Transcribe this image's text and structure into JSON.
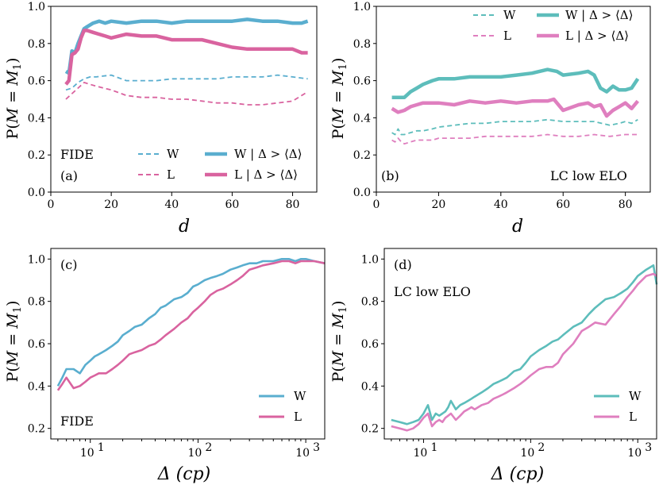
{
  "colors": {
    "W": "#5aaecf",
    "L": "#d9639f",
    "W_lc": "#5dbdbb",
    "L_lc": "#df7fbf"
  },
  "chart_data": [
    {
      "panel": "a",
      "type": "line",
      "xlabel": "d",
      "ylabel": "P(M = M1)",
      "xlim": [
        0,
        88
      ],
      "ylim": [
        0,
        1
      ],
      "xticks": [
        "0",
        "20",
        "40",
        "60",
        "80"
      ],
      "yticks": [
        "0.0",
        "0.2",
        "0.4",
        "0.6",
        "0.8",
        "1.0"
      ],
      "annotations": [
        "FIDE",
        "(a)"
      ],
      "legend": {
        "W": "W",
        "L": "L",
        "W_thick": "W | Δ > ⟨Δ⟩",
        "L_thick": "L | Δ > ⟨Δ⟩"
      },
      "series": [
        {
          "name": "W | Δ > ⟨Δ⟩",
          "style": "thick",
          "color": "W",
          "x": [
            5,
            6,
            7,
            8,
            9,
            10,
            11,
            12,
            14,
            16,
            18,
            20,
            25,
            30,
            35,
            40,
            45,
            50,
            55,
            60,
            65,
            70,
            75,
            80,
            83,
            85
          ],
          "y": [
            0.65,
            0.64,
            0.76,
            0.75,
            0.8,
            0.84,
            0.88,
            0.89,
            0.91,
            0.92,
            0.91,
            0.92,
            0.91,
            0.92,
            0.92,
            0.91,
            0.92,
            0.92,
            0.92,
            0.92,
            0.93,
            0.92,
            0.92,
            0.91,
            0.91,
            0.92
          ]
        },
        {
          "name": "L | Δ > ⟨Δ⟩",
          "style": "thick",
          "color": "L",
          "x": [
            5,
            6,
            7,
            8,
            9,
            10,
            11,
            12,
            14,
            16,
            18,
            20,
            25,
            30,
            35,
            40,
            45,
            50,
            55,
            60,
            65,
            70,
            75,
            80,
            83,
            85
          ],
          "y": [
            0.58,
            0.6,
            0.74,
            0.75,
            0.77,
            0.83,
            0.87,
            0.87,
            0.86,
            0.85,
            0.84,
            0.83,
            0.85,
            0.84,
            0.84,
            0.82,
            0.82,
            0.82,
            0.8,
            0.78,
            0.77,
            0.77,
            0.77,
            0.77,
            0.75,
            0.75
          ]
        },
        {
          "name": "W",
          "style": "dashed",
          "color": "W",
          "x": [
            5,
            7,
            9,
            11,
            13,
            15,
            20,
            25,
            30,
            35,
            40,
            45,
            50,
            55,
            60,
            65,
            70,
            75,
            80,
            85
          ],
          "y": [
            0.55,
            0.56,
            0.59,
            0.61,
            0.62,
            0.62,
            0.63,
            0.6,
            0.6,
            0.6,
            0.61,
            0.61,
            0.61,
            0.61,
            0.62,
            0.62,
            0.62,
            0.63,
            0.62,
            0.61
          ]
        },
        {
          "name": "L",
          "style": "dashed",
          "color": "L",
          "x": [
            5,
            7,
            9,
            11,
            13,
            15,
            20,
            25,
            30,
            35,
            40,
            45,
            50,
            55,
            60,
            65,
            70,
            75,
            80,
            85
          ],
          "y": [
            0.5,
            0.53,
            0.56,
            0.59,
            0.58,
            0.57,
            0.55,
            0.52,
            0.51,
            0.51,
            0.5,
            0.5,
            0.49,
            0.48,
            0.48,
            0.47,
            0.47,
            0.48,
            0.49,
            0.54
          ]
        }
      ]
    },
    {
      "panel": "b",
      "type": "line",
      "xlabel": "d",
      "ylabel": "P(M = M1)",
      "xlim": [
        0,
        88
      ],
      "ylim": [
        0,
        1
      ],
      "xticks": [
        "0",
        "20",
        "40",
        "60",
        "80"
      ],
      "yticks": [
        "0.0",
        "0.2",
        "0.4",
        "0.6",
        "0.8",
        "1.0"
      ],
      "annotations": [
        "(b)",
        "LC low ELO"
      ],
      "legend": {
        "W": "W",
        "L": "L",
        "W_thick": "W | Δ > ⟨Δ⟩",
        "L_thick": "L | Δ > ⟨Δ⟩"
      },
      "series": [
        {
          "name": "W | Δ > ⟨Δ⟩",
          "style": "thick",
          "color": "W_lc",
          "x": [
            5,
            7,
            9,
            11,
            13,
            15,
            18,
            20,
            25,
            30,
            35,
            40,
            45,
            50,
            55,
            58,
            60,
            65,
            68,
            70,
            72,
            74,
            76,
            78,
            80,
            82,
            84
          ],
          "y": [
            0.51,
            0.51,
            0.51,
            0.54,
            0.56,
            0.58,
            0.6,
            0.61,
            0.61,
            0.62,
            0.62,
            0.62,
            0.63,
            0.64,
            0.66,
            0.65,
            0.63,
            0.64,
            0.65,
            0.63,
            0.56,
            0.54,
            0.57,
            0.55,
            0.55,
            0.56,
            0.61
          ]
        },
        {
          "name": "L | Δ > ⟨Δ⟩",
          "style": "thick",
          "color": "L_lc",
          "x": [
            5,
            7,
            9,
            11,
            13,
            15,
            18,
            20,
            25,
            30,
            35,
            40,
            45,
            50,
            55,
            57,
            60,
            65,
            68,
            70,
            72,
            74,
            76,
            78,
            80,
            82,
            84
          ],
          "y": [
            0.45,
            0.43,
            0.44,
            0.46,
            0.47,
            0.48,
            0.48,
            0.48,
            0.47,
            0.49,
            0.48,
            0.49,
            0.48,
            0.49,
            0.49,
            0.5,
            0.44,
            0.47,
            0.48,
            0.46,
            0.47,
            0.41,
            0.44,
            0.46,
            0.48,
            0.45,
            0.49
          ]
        },
        {
          "name": "W",
          "style": "dashed",
          "color": "W_lc",
          "x": [
            5,
            6,
            7,
            8,
            9,
            11,
            13,
            15,
            18,
            20,
            25,
            30,
            35,
            40,
            45,
            50,
            55,
            60,
            65,
            70,
            75,
            78,
            80,
            82,
            84
          ],
          "y": [
            0.32,
            0.31,
            0.34,
            0.31,
            0.31,
            0.32,
            0.33,
            0.33,
            0.34,
            0.35,
            0.36,
            0.37,
            0.37,
            0.38,
            0.38,
            0.38,
            0.39,
            0.38,
            0.38,
            0.38,
            0.36,
            0.37,
            0.38,
            0.37,
            0.39
          ]
        },
        {
          "name": "L",
          "style": "dashed",
          "color": "L_lc",
          "x": [
            5,
            6,
            7,
            8,
            9,
            11,
            13,
            15,
            18,
            20,
            25,
            30,
            35,
            40,
            45,
            50,
            55,
            60,
            65,
            70,
            75,
            80,
            84
          ],
          "y": [
            0.28,
            0.27,
            0.29,
            0.27,
            0.26,
            0.27,
            0.28,
            0.28,
            0.28,
            0.29,
            0.29,
            0.29,
            0.3,
            0.3,
            0.3,
            0.3,
            0.31,
            0.3,
            0.3,
            0.31,
            0.3,
            0.31,
            0.31
          ]
        }
      ]
    },
    {
      "panel": "c",
      "type": "line",
      "scale_x": "log",
      "xlabel": "Δ (cp)",
      "ylabel": "P(M = M1)",
      "xlim": [
        4.3,
        1500
      ],
      "ylim": [
        0.15,
        1.05
      ],
      "xticks": [
        "10",
        "10",
        "10"
      ],
      "yticks": [
        "0.2",
        "0.4",
        "0.6",
        "0.8",
        "1.0"
      ],
      "annotations": [
        "(c)",
        "FIDE"
      ],
      "legend": {
        "W": "W",
        "L": "L"
      },
      "series": [
        {
          "name": "W",
          "color": "W",
          "x": [
            5,
            5.5,
            6,
            7,
            8,
            9,
            10,
            11,
            12,
            14,
            16,
            18,
            20,
            23,
            26,
            30,
            35,
            40,
            45,
            50,
            60,
            70,
            80,
            90,
            100,
            115,
            130,
            150,
            170,
            200,
            230,
            260,
            300,
            350,
            400,
            500,
            600,
            700,
            800,
            900,
            1000,
            1200,
            1500
          ],
          "y": [
            0.4,
            0.44,
            0.48,
            0.48,
            0.46,
            0.5,
            0.52,
            0.54,
            0.55,
            0.57,
            0.59,
            0.61,
            0.64,
            0.66,
            0.68,
            0.69,
            0.72,
            0.74,
            0.77,
            0.78,
            0.81,
            0.82,
            0.84,
            0.87,
            0.88,
            0.9,
            0.91,
            0.92,
            0.93,
            0.95,
            0.96,
            0.97,
            0.98,
            0.98,
            0.99,
            0.99,
            1.0,
            1.0,
            0.99,
            1.0,
            1.0,
            0.99,
            0.98
          ]
        },
        {
          "name": "L",
          "color": "L",
          "x": [
            5,
            5.5,
            6,
            7,
            8,
            9,
            10,
            11,
            12,
            14,
            16,
            18,
            20,
            23,
            26,
            30,
            35,
            40,
            45,
            50,
            60,
            70,
            80,
            90,
            100,
            115,
            130,
            150,
            170,
            200,
            230,
            260,
            300,
            350,
            400,
            500,
            600,
            700,
            800,
            900,
            1000,
            1200,
            1500
          ],
          "y": [
            0.38,
            0.41,
            0.44,
            0.39,
            0.4,
            0.42,
            0.44,
            0.45,
            0.46,
            0.46,
            0.48,
            0.5,
            0.52,
            0.55,
            0.56,
            0.57,
            0.59,
            0.6,
            0.62,
            0.64,
            0.67,
            0.7,
            0.72,
            0.75,
            0.77,
            0.8,
            0.83,
            0.85,
            0.86,
            0.88,
            0.9,
            0.92,
            0.95,
            0.96,
            0.97,
            0.98,
            0.99,
            0.99,
            0.98,
            0.99,
            0.99,
            0.99,
            0.98
          ]
        }
      ]
    },
    {
      "panel": "d",
      "type": "line",
      "scale_x": "log",
      "xlabel": "Δ (cp)",
      "ylabel": "P(M = M1)",
      "xlim": [
        4.3,
        1500
      ],
      "ylim": [
        0.15,
        1.05
      ],
      "xticks": [
        "10",
        "10",
        "10"
      ],
      "yticks": [
        "0.2",
        "0.4",
        "0.6",
        "0.8",
        "1.0"
      ],
      "annotations": [
        "(d)",
        "LC low ELO"
      ],
      "legend": {
        "W": "W",
        "L": "L"
      },
      "series": [
        {
          "name": "W",
          "color": "W_lc",
          "x": [
            5,
            6,
            7,
            8,
            9,
            10,
            11,
            12,
            13,
            14,
            15,
            16,
            17,
            18,
            20,
            22,
            24,
            26,
            28,
            30,
            35,
            40,
            45,
            50,
            55,
            60,
            70,
            80,
            90,
            100,
            120,
            140,
            160,
            180,
            200,
            250,
            300,
            350,
            400,
            500,
            600,
            700,
            800,
            900,
            1000,
            1200,
            1400,
            1500
          ],
          "y": [
            0.24,
            0.23,
            0.22,
            0.23,
            0.24,
            0.27,
            0.31,
            0.24,
            0.27,
            0.26,
            0.27,
            0.28,
            0.3,
            0.33,
            0.29,
            0.31,
            0.32,
            0.33,
            0.34,
            0.35,
            0.37,
            0.39,
            0.41,
            0.42,
            0.43,
            0.44,
            0.47,
            0.48,
            0.51,
            0.54,
            0.57,
            0.59,
            0.61,
            0.62,
            0.64,
            0.68,
            0.7,
            0.74,
            0.77,
            0.81,
            0.82,
            0.84,
            0.86,
            0.89,
            0.92,
            0.95,
            0.97,
            0.88
          ]
        },
        {
          "name": "L",
          "color": "L_lc",
          "x": [
            5,
            6,
            7,
            8,
            9,
            10,
            11,
            12,
            13,
            14,
            15,
            16,
            17,
            18,
            20,
            22,
            24,
            26,
            28,
            30,
            35,
            40,
            45,
            50,
            55,
            60,
            70,
            80,
            90,
            100,
            120,
            140,
            160,
            180,
            200,
            250,
            300,
            350,
            400,
            500,
            600,
            700,
            800,
            900,
            1000,
            1200,
            1400,
            1500
          ],
          "y": [
            0.21,
            0.2,
            0.19,
            0.2,
            0.22,
            0.25,
            0.27,
            0.21,
            0.23,
            0.24,
            0.23,
            0.25,
            0.26,
            0.27,
            0.24,
            0.26,
            0.28,
            0.29,
            0.3,
            0.29,
            0.31,
            0.32,
            0.34,
            0.35,
            0.36,
            0.37,
            0.39,
            0.41,
            0.43,
            0.45,
            0.48,
            0.49,
            0.49,
            0.51,
            0.55,
            0.6,
            0.66,
            0.68,
            0.7,
            0.69,
            0.74,
            0.78,
            0.82,
            0.85,
            0.88,
            0.92,
            0.93,
            0.92
          ]
        }
      ]
    }
  ]
}
